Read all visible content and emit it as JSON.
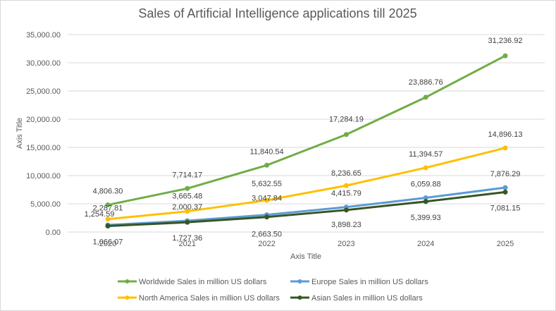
{
  "chart_data": {
    "type": "line",
    "title": "Sales of Artificial Intelligence applications till 2025",
    "xlabel": "Axis Title",
    "ylabel": "Axis Title",
    "categories": [
      "2020",
      "2021",
      "2022",
      "2023",
      "2024",
      "2025"
    ],
    "ylim": [
      0,
      35000
    ],
    "yticks": [
      0,
      5000,
      10000,
      15000,
      20000,
      25000,
      30000,
      35000
    ],
    "ytick_labels": [
      "0.00",
      "5,000.00",
      "10,000.00",
      "15,000.00",
      "20,000.00",
      "25,000.00",
      "30,000.00",
      "35,000.00"
    ],
    "grid": true,
    "legend_position": "bottom",
    "series": [
      {
        "name": "Worldwide Sales in million US dollars",
        "color": "#70ad47",
        "values": [
          4806.3,
          7714.17,
          11840.54,
          17284.19,
          23886.76,
          31236.92
        ],
        "labels": [
          "4,806.30",
          "7,714.17",
          "11,840.54",
          "17,284.19",
          "23,886.76",
          "31,236.92"
        ]
      },
      {
        "name": "Europe Sales in million US dollars",
        "color": "#5b9bd5",
        "values": [
          1254.59,
          2000.37,
          3047.84,
          4415.79,
          6059.88,
          7876.29
        ],
        "labels": [
          "1,254.59",
          "2,000.37",
          "3,047.84",
          "4,415.79",
          "6,059.88",
          "7,876.29"
        ]
      },
      {
        "name": "North America Sales in million US dollars",
        "color": "#ffc000",
        "values": [
          2287.81,
          3665.48,
          5632.55,
          8236.65,
          11394.57,
          14896.13
        ],
        "labels": [
          "2,287.81",
          "3,665.48",
          "5,632.55",
          "8,236.65",
          "11,394.57",
          "14,896.13"
        ]
      },
      {
        "name": "Asian Sales in million US dollars",
        "color": "#375623",
        "values": [
          1066.07,
          1727.36,
          2663.5,
          3898.23,
          5399.93,
          7081.15
        ],
        "labels": [
          "1,066.07",
          "1,727.36",
          "2,663.50",
          "3,898.23",
          "5,399.93",
          "7,081.15"
        ]
      }
    ]
  }
}
